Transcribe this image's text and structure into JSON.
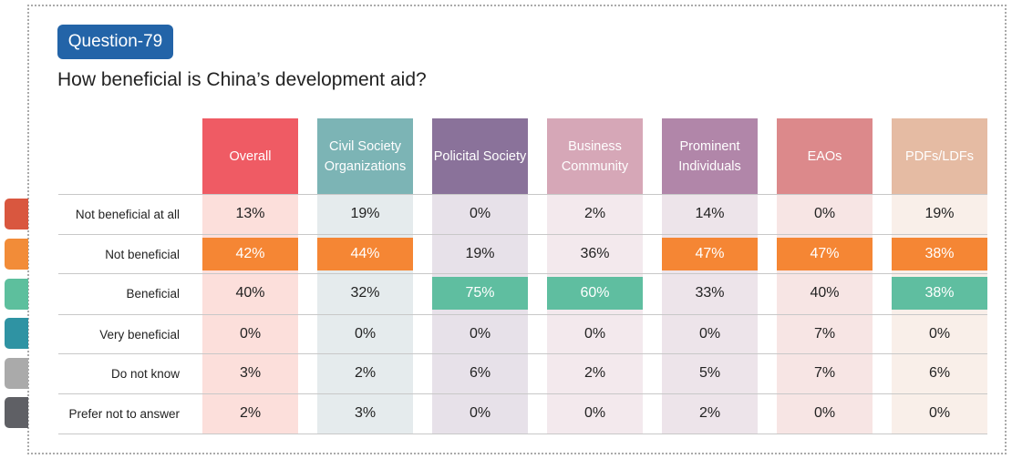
{
  "badge": "Question-79",
  "title": "How beneficial is China’s development aid?",
  "side_tabs": [
    "#d9573f",
    "#f28c38",
    "#5dbf9d",
    "#2f93a3",
    "#aaaaaa",
    "#5f6065"
  ],
  "columns": [
    {
      "label": "Overall",
      "color": "#ef535c",
      "tint": "#fbd7d2"
    },
    {
      "label": "Civil Society Organizations",
      "color": "#76b0b2",
      "tint": "#dfe6e8"
    },
    {
      "label": "Policital Society",
      "color": "#846b95",
      "tint": "#e1d9e4"
    },
    {
      "label": "Business Community",
      "color": "#d4a3b4",
      "tint": "#f0e3e8"
    },
    {
      "label": "Prominent Individuals",
      "color": "#ad80a5",
      "tint": "#e8dde5"
    },
    {
      "label": "EAOs",
      "color": "#db8385",
      "tint": "#f5dedd"
    },
    {
      "label": "PDFs/LDFs",
      "color": "#e4b89f",
      "tint": "#f8ebe4"
    }
  ],
  "highlight_colors": {
    "orange": "#f58634",
    "green": "#5fbea0"
  },
  "rows": [
    {
      "label": "Not beneficial at all",
      "values": [
        "13%",
        "19%",
        "0%",
        "2%",
        "14%",
        "0%",
        "19%"
      ],
      "hl": [
        null,
        null,
        null,
        null,
        null,
        null,
        null
      ]
    },
    {
      "label": "Not beneficial",
      "values": [
        "42%",
        "44%",
        "19%",
        "36%",
        "47%",
        "47%",
        "38%"
      ],
      "hl": [
        "orange",
        "orange",
        null,
        null,
        "orange",
        "orange",
        "orange"
      ]
    },
    {
      "label": "Beneficial",
      "values": [
        "40%",
        "32%",
        "75%",
        "60%",
        "33%",
        "40%",
        "38%"
      ],
      "hl": [
        null,
        null,
        "green",
        "green",
        null,
        null,
        "green"
      ]
    },
    {
      "label": "Very beneficial",
      "values": [
        "0%",
        "0%",
        "0%",
        "0%",
        "0%",
        "7%",
        "0%"
      ],
      "hl": [
        null,
        null,
        null,
        null,
        null,
        null,
        null
      ]
    },
    {
      "label": "Do not know",
      "values": [
        "3%",
        "2%",
        "6%",
        "2%",
        "5%",
        "7%",
        "6%"
      ],
      "hl": [
        null,
        null,
        null,
        null,
        null,
        null,
        null
      ]
    },
    {
      "label": "Prefer not to answer",
      "values": [
        "2%",
        "3%",
        "0%",
        "0%",
        "2%",
        "0%",
        "0%"
      ],
      "hl": [
        null,
        null,
        null,
        null,
        null,
        null,
        null
      ]
    }
  ]
}
